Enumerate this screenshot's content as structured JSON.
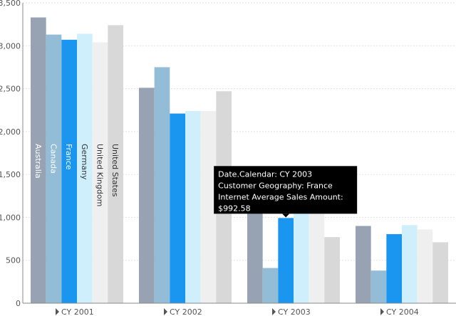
{
  "chart_data": {
    "type": "bar",
    "categories": [
      "CY 2001",
      "CY 2002",
      "CY 2003",
      "CY 2004"
    ],
    "series": [
      {
        "name": "Australia",
        "color": "#97a3b3",
        "label_color": "#ffffff",
        "values": [
          3330,
          2510,
          1150,
          900
        ]
      },
      {
        "name": "Canada",
        "color": "#93bcd6",
        "label_color": "#ffffff",
        "values": [
          3130,
          2750,
          410,
          380
        ]
      },
      {
        "name": "France",
        "color": "#1a96f0",
        "label_color": "#ffffff",
        "values": [
          3070,
          2210,
          992.58,
          805
        ]
      },
      {
        "name": "Germany",
        "color": "#d0effc",
        "label_color": "#333333",
        "values": [
          3140,
          2240,
          1080,
          910
        ]
      },
      {
        "name": "United Kingdom",
        "color": "#efefef",
        "label_color": "#333333",
        "values": [
          3040,
          2240,
          1050,
          860
        ]
      },
      {
        "name": "United States",
        "color": "#d8d8d8",
        "label_color": "#333333",
        "values": [
          3240,
          2470,
          770,
          710
        ]
      }
    ],
    "ylim": [
      0,
      3500
    ],
    "yticks": [
      0,
      500,
      {
        "value": 1000,
        "label": "1,000"
      },
      {
        "value": 1500,
        "label": "1,500"
      },
      {
        "value": 2000,
        "label": "2,000"
      },
      {
        "value": 2500,
        "label": "2,500"
      },
      {
        "value": 3000,
        "label": "3,000"
      },
      {
        "value": 3500,
        "label": "3,500"
      }
    ],
    "grid": true,
    "tooltip": {
      "series": 2,
      "category": 2,
      "lines": [
        "Date.Calendar: CY 2003",
        "Customer Geography: France",
        "Internet Average Sales Amount:",
        "$992.58"
      ]
    }
  }
}
